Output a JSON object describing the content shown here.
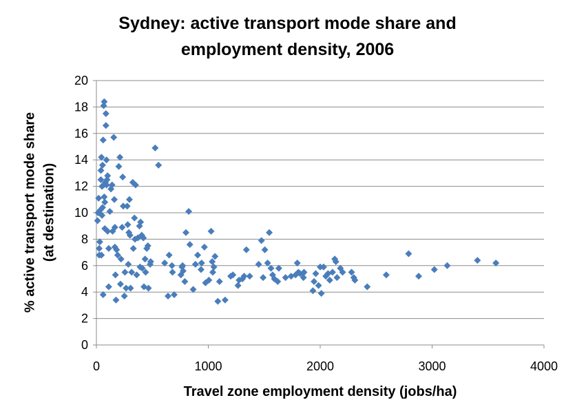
{
  "chart_data": {
    "type": "scatter",
    "title_lines": [
      "Sydney: active transport mode share and",
      "employment density, 2006"
    ],
    "xlabel": "Travel zone employment density (jobs/ha)",
    "ylabel_lines": [
      "% active transport mode share",
      "(at destination)"
    ],
    "xlim": [
      0,
      4000
    ],
    "ylim": [
      0,
      20
    ],
    "x_ticks": [
      "0",
      "1000",
      "2000",
      "3000",
      "4000"
    ],
    "y_ticks": [
      "0",
      "2",
      "4",
      "6",
      "8",
      "10",
      "12",
      "14",
      "16",
      "18",
      "20"
    ],
    "grid": {
      "horizontal": true,
      "vertical": false
    },
    "legend": "none",
    "marker": {
      "shape": "diamond",
      "color": "#4a7ebb"
    },
    "series": [
      {
        "points": [
          [
            10,
            9.4
          ],
          [
            15,
            10
          ],
          [
            20,
            11.1
          ],
          [
            25,
            7.3
          ],
          [
            25,
            6.8
          ],
          [
            30,
            7.8
          ],
          [
            35,
            10.2
          ],
          [
            40,
            12.5
          ],
          [
            40,
            13.2
          ],
          [
            45,
            6.8
          ],
          [
            45,
            14.2
          ],
          [
            50,
            9.8
          ],
          [
            50,
            12
          ],
          [
            55,
            13.6
          ],
          [
            55,
            10.4
          ],
          [
            60,
            3.8
          ],
          [
            60,
            15.5
          ],
          [
            65,
            18.1
          ],
          [
            65,
            12.1
          ],
          [
            70,
            18.4
          ],
          [
            70,
            11.2
          ],
          [
            75,
            10.8
          ],
          [
            75,
            8.8
          ],
          [
            80,
            12.3
          ],
          [
            85,
            17.5
          ],
          [
            85,
            16.6
          ],
          [
            90,
            14
          ],
          [
            90,
            12.1
          ],
          [
            95,
            12.5
          ],
          [
            100,
            12.8
          ],
          [
            100,
            8.6
          ],
          [
            110,
            7.3
          ],
          [
            110,
            4.4
          ],
          [
            120,
            10.1
          ],
          [
            130,
            11.8
          ],
          [
            140,
            12.1
          ],
          [
            145,
            8.6
          ],
          [
            155,
            15.7
          ],
          [
            160,
            11
          ],
          [
            165,
            8.9
          ],
          [
            165,
            7.4
          ],
          [
            170,
            5.3
          ],
          [
            175,
            3.4
          ],
          [
            180,
            7.2
          ],
          [
            190,
            6.8
          ],
          [
            200,
            13.5
          ],
          [
            210,
            14.2
          ],
          [
            215,
            4.6
          ],
          [
            220,
            6.5
          ],
          [
            230,
            8.9
          ],
          [
            235,
            12.7
          ],
          [
            240,
            10.5
          ],
          [
            250,
            3.7
          ],
          [
            255,
            5.5
          ],
          [
            265,
            4.3
          ],
          [
            275,
            10.5
          ],
          [
            280,
            9.1
          ],
          [
            285,
            6.1
          ],
          [
            290,
            8.5
          ],
          [
            295,
            11
          ],
          [
            300,
            8.3
          ],
          [
            305,
            4.3
          ],
          [
            315,
            5.5
          ],
          [
            325,
            12.3
          ],
          [
            330,
            7.3
          ],
          [
            340,
            9.6
          ],
          [
            345,
            8
          ],
          [
            350,
            12.1
          ],
          [
            360,
            5.3
          ],
          [
            370,
            8.1
          ],
          [
            385,
            9
          ],
          [
            390,
            5.9
          ],
          [
            395,
            9.3
          ],
          [
            405,
            8.3
          ],
          [
            410,
            5.8
          ],
          [
            420,
            8.1
          ],
          [
            425,
            4.4
          ],
          [
            435,
            6.5
          ],
          [
            440,
            5.5
          ],
          [
            450,
            7.3
          ],
          [
            460,
            7.5
          ],
          [
            465,
            4.3
          ],
          [
            480,
            6.1
          ],
          [
            485,
            6.3
          ],
          [
            525,
            14.9
          ],
          [
            555,
            13.6
          ],
          [
            610,
            6.2
          ],
          [
            640,
            3.7
          ],
          [
            650,
            6.8
          ],
          [
            675,
            6
          ],
          [
            680,
            5.5
          ],
          [
            695,
            3.8
          ],
          [
            755,
            5.3
          ],
          [
            765,
            5.9
          ],
          [
            770,
            6
          ],
          [
            775,
            5.6
          ],
          [
            790,
            4.8
          ],
          [
            800,
            8.5
          ],
          [
            825,
            10.1
          ],
          [
            835,
            7.6
          ],
          [
            865,
            4.2
          ],
          [
            885,
            6.1
          ],
          [
            905,
            6.8
          ],
          [
            935,
            5.7
          ],
          [
            940,
            6.2
          ],
          [
            965,
            7.4
          ],
          [
            975,
            4.7
          ],
          [
            1005,
            4.9
          ],
          [
            1025,
            8.6
          ],
          [
            1035,
            6.3
          ],
          [
            1040,
            5.5
          ],
          [
            1050,
            5.9
          ],
          [
            1060,
            6.7
          ],
          [
            1085,
            3.3
          ],
          [
            1100,
            4.8
          ],
          [
            1150,
            3.4
          ],
          [
            1200,
            5.2
          ],
          [
            1220,
            5.3
          ],
          [
            1265,
            4.5
          ],
          [
            1275,
            4.9
          ],
          [
            1305,
            5
          ],
          [
            1320,
            5.2
          ],
          [
            1340,
            7.2
          ],
          [
            1370,
            5.2
          ],
          [
            1450,
            6.1
          ],
          [
            1475,
            7.9
          ],
          [
            1490,
            5.1
          ],
          [
            1505,
            7.2
          ],
          [
            1530,
            6.2
          ],
          [
            1545,
            8.5
          ],
          [
            1560,
            5.8
          ],
          [
            1575,
            5.3
          ],
          [
            1590,
            5
          ],
          [
            1620,
            4.8
          ],
          [
            1630,
            5.8
          ],
          [
            1690,
            5.1
          ],
          [
            1740,
            5.2
          ],
          [
            1780,
            5.3
          ],
          [
            1795,
            6.2
          ],
          [
            1805,
            5.5
          ],
          [
            1820,
            5.4
          ],
          [
            1845,
            5.4
          ],
          [
            1850,
            5.1
          ],
          [
            1855,
            5.5
          ],
          [
            1935,
            4.1
          ],
          [
            1945,
            4.8
          ],
          [
            1960,
            5.4
          ],
          [
            1985,
            4.5
          ],
          [
            2000,
            5.9
          ],
          [
            2010,
            3.9
          ],
          [
            2030,
            5.9
          ],
          [
            2050,
            5.2
          ],
          [
            2070,
            5.4
          ],
          [
            2085,
            4.9
          ],
          [
            2110,
            5.5
          ],
          [
            2130,
            6.5
          ],
          [
            2140,
            6.3
          ],
          [
            2150,
            5.1
          ],
          [
            2180,
            5.8
          ],
          [
            2200,
            5.5
          ],
          [
            2280,
            5.5
          ],
          [
            2300,
            5.1
          ],
          [
            2310,
            4.9
          ],
          [
            2420,
            4.4
          ],
          [
            2590,
            5.3
          ],
          [
            2790,
            6.9
          ],
          [
            2880,
            5.2
          ],
          [
            3020,
            5.7
          ],
          [
            3135,
            6
          ],
          [
            3405,
            6.4
          ],
          [
            3570,
            6.2
          ]
        ]
      }
    ]
  }
}
